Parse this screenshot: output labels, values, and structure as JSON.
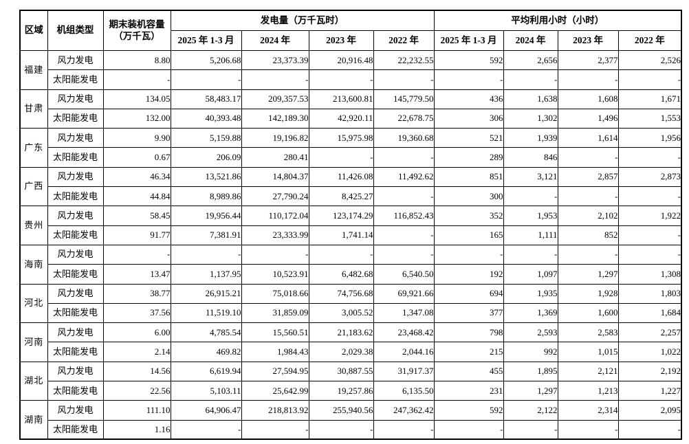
{
  "table": {
    "headers": {
      "region": "区域",
      "unit_type": "机组类型",
      "capacity": "期末装机容量（万千瓦）",
      "generation_group": "发电量（万千瓦时）",
      "hours_group": "平均利用小时（小时）",
      "periods": [
        "2025 年 1-3 月",
        "2024 年",
        "2023 年",
        "2022 年"
      ]
    },
    "regions": [
      {
        "name": "福建",
        "rows": [
          {
            "type": "风力发电",
            "capacity": "8.80",
            "gen": [
              "5,206.68",
              "23,373.39",
              "20,916.48",
              "22,232.55"
            ],
            "hours": [
              "592",
              "2,656",
              "2,377",
              "2,526"
            ]
          },
          {
            "type": "太阳能发电",
            "capacity": "-",
            "gen": [
              "-",
              "-",
              "-",
              "-"
            ],
            "hours": [
              "-",
              "-",
              "-",
              "-"
            ]
          }
        ]
      },
      {
        "name": "甘肃",
        "rows": [
          {
            "type": "风力发电",
            "capacity": "134.05",
            "gen": [
              "58,483.17",
              "209,357.53",
              "213,600.81",
              "145,779.50"
            ],
            "hours": [
              "436",
              "1,638",
              "1,608",
              "1,671"
            ]
          },
          {
            "type": "太阳能发电",
            "capacity": "132.00",
            "gen": [
              "40,393.48",
              "142,189.30",
              "42,920.11",
              "22,678.75"
            ],
            "hours": [
              "306",
              "1,302",
              "1,496",
              "1,553"
            ]
          }
        ]
      },
      {
        "name": "广东",
        "rows": [
          {
            "type": "风力发电",
            "capacity": "9.90",
            "gen": [
              "5,159.88",
              "19,196.82",
              "15,975.98",
              "19,360.68"
            ],
            "hours": [
              "521",
              "1,939",
              "1,614",
              "1,956"
            ]
          },
          {
            "type": "太阳能发电",
            "capacity": "0.67",
            "gen": [
              "206.09",
              "280.41",
              "-",
              "-"
            ],
            "hours": [
              "289",
              "846",
              "-",
              "-"
            ]
          }
        ]
      },
      {
        "name": "广西",
        "rows": [
          {
            "type": "风力发电",
            "capacity": "46.34",
            "gen": [
              "13,521.86",
              "14,804.37",
              "11,426.08",
              "11,492.62"
            ],
            "hours": [
              "851",
              "3,121",
              "2,857",
              "2,873"
            ]
          },
          {
            "type": "太阳能发电",
            "capacity": "44.84",
            "gen": [
              "8,989.86",
              "27,790.24",
              "8,425.27",
              "-"
            ],
            "hours": [
              "300",
              "-",
              "-",
              "-"
            ]
          }
        ]
      },
      {
        "name": "贵州",
        "rows": [
          {
            "type": "风力发电",
            "capacity": "58.45",
            "gen": [
              "19,956.44",
              "110,172.04",
              "123,174.29",
              "116,852.43"
            ],
            "hours": [
              "352",
              "1,953",
              "2,102",
              "1,922"
            ]
          },
          {
            "type": "太阳能发电",
            "capacity": "91.77",
            "gen": [
              "7,381.91",
              "23,333.99",
              "1,741.14",
              "-"
            ],
            "hours": [
              "165",
              "1,111",
              "852",
              "-"
            ]
          }
        ]
      },
      {
        "name": "海南",
        "rows": [
          {
            "type": "风力发电",
            "capacity": "-",
            "gen": [
              "-",
              "-",
              "-",
              "-"
            ],
            "hours": [
              "-",
              "-",
              "-",
              "-"
            ]
          },
          {
            "type": "太阳能发电",
            "capacity": "13.47",
            "gen": [
              "1,137.95",
              "10,523.91",
              "6,482.68",
              "6,540.50"
            ],
            "hours": [
              "192",
              "1,097",
              "1,297",
              "1,308"
            ]
          }
        ]
      },
      {
        "name": "河北",
        "rows": [
          {
            "type": "风力发电",
            "capacity": "38.77",
            "gen": [
              "26,915.21",
              "75,018.66",
              "74,756.68",
              "69,921.66"
            ],
            "hours": [
              "694",
              "1,935",
              "1,928",
              "1,803"
            ]
          },
          {
            "type": "太阳能发电",
            "capacity": "37.56",
            "gen": [
              "11,519.10",
              "31,859.09",
              "3,005.52",
              "1,347.08"
            ],
            "hours": [
              "377",
              "1,369",
              "1,600",
              "1,684"
            ]
          }
        ]
      },
      {
        "name": "河南",
        "rows": [
          {
            "type": "风力发电",
            "capacity": "6.00",
            "gen": [
              "4,785.54",
              "15,560.51",
              "21,183.62",
              "23,468.42"
            ],
            "hours": [
              "798",
              "2,593",
              "2,583",
              "2,257"
            ]
          },
          {
            "type": "太阳能发电",
            "capacity": "2.14",
            "gen": [
              "469.82",
              "1,984.43",
              "2,029.38",
              "2,044.16"
            ],
            "hours": [
              "215",
              "992",
              "1,015",
              "1,022"
            ]
          }
        ]
      },
      {
        "name": "湖北",
        "rows": [
          {
            "type": "风力发电",
            "capacity": "14.56",
            "gen": [
              "6,619.94",
              "27,594.95",
              "30,887.55",
              "31,917.37"
            ],
            "hours": [
              "455",
              "1,895",
              "2,121",
              "2,192"
            ]
          },
          {
            "type": "太阳能发电",
            "capacity": "22.56",
            "gen": [
              "5,103.11",
              "25,642.99",
              "19,257.86",
              "6,135.50"
            ],
            "hours": [
              "231",
              "1,297",
              "1,213",
              "1,227"
            ]
          }
        ]
      },
      {
        "name": "湖南",
        "rows": [
          {
            "type": "风力发电",
            "capacity": "111.10",
            "gen": [
              "64,906.47",
              "218,813.92",
              "255,940.56",
              "247,362.42"
            ],
            "hours": [
              "592",
              "2,122",
              "2,314",
              "2,095"
            ]
          },
          {
            "type": "太阳能发电",
            "capacity": "1.16",
            "gen": [
              "-",
              "-",
              "-",
              "-"
            ],
            "hours": [
              "-",
              "-",
              "-",
              "-"
            ]
          }
        ]
      }
    ]
  }
}
